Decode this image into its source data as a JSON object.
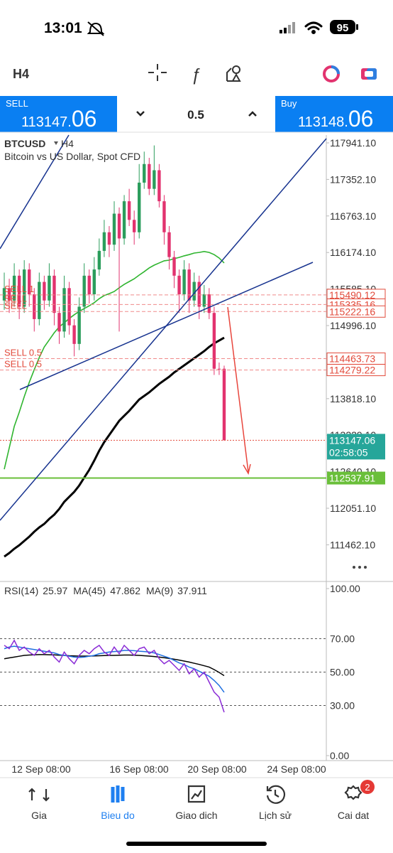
{
  "status_bar": {
    "time": "13:01",
    "battery": "95"
  },
  "toolbar": {
    "timeframe": "H4"
  },
  "trade_panel": {
    "sell": {
      "label": "SELL",
      "price_int": "113147.",
      "price_dec": "06"
    },
    "volume": "0.5",
    "buy": {
      "label": "Buy",
      "price_int": "113148.",
      "price_dec": "06"
    }
  },
  "chart_data": [
    {
      "type": "candlestick",
      "symbol": "BTCUSD",
      "timeframe": "H4",
      "title": "Bitcoin vs US Dollar, Spot CFD",
      "open": [
        115400,
        115600,
        115400,
        115800,
        115300,
        115900,
        115500,
        115100,
        115700,
        115400,
        115800,
        115200,
        114900,
        115600,
        115000,
        114700,
        115300,
        115800,
        115500,
        115900,
        116200,
        116500,
        116300,
        116800,
        116400,
        117000,
        116700,
        116500,
        117300,
        117600,
        117200,
        117500,
        117000,
        116500,
        116100,
        115800,
        115500,
        115900,
        115400,
        115700,
        115300,
        115500,
        115200,
        114300,
        114300
      ],
      "high": [
        115850,
        115750,
        116000,
        115900,
        116050,
        116000,
        115600,
        115850,
        115800,
        116000,
        115900,
        115300,
        115800,
        115700,
        115100,
        115450,
        116000,
        115900,
        116100,
        116400,
        116700,
        116600,
        117000,
        116900,
        117100,
        117200,
        116850,
        117600,
        117800,
        117700,
        117900,
        117600,
        117100,
        116600,
        116200,
        115900,
        116050,
        116000,
        115850,
        115800,
        115650,
        115600,
        115300,
        114400,
        114350
      ],
      "low": [
        115250,
        115200,
        115300,
        115100,
        115200,
        115300,
        114900,
        115000,
        115250,
        115300,
        115000,
        114700,
        114800,
        114850,
        114500,
        114600,
        115200,
        115350,
        115400,
        115800,
        116100,
        116100,
        116200,
        114900,
        116300,
        116600,
        116300,
        116400,
        117200,
        117100,
        117100,
        116900,
        116300,
        115900,
        115600,
        115200,
        115400,
        115200,
        115300,
        115100,
        115200,
        115100,
        114200,
        114200,
        113147.06
      ],
      "close": [
        115600,
        115400,
        115800,
        115300,
        115900,
        115500,
        115100,
        115700,
        115400,
        115800,
        115200,
        114900,
        115600,
        115000,
        114700,
        115300,
        115800,
        115500,
        115900,
        116200,
        116500,
        116300,
        116800,
        116400,
        117000,
        116700,
        116500,
        117300,
        117600,
        117200,
        117500,
        117000,
        116500,
        116100,
        115800,
        115500,
        115900,
        115400,
        115700,
        115300,
        115500,
        115200,
        114300,
        114300,
        113147.06
      ],
      "up_color": "#2b9d5c",
      "down_color": "#e2336f",
      "series": [
        {
          "color": "#2fb52f",
          "values": [
            112680,
            113025,
            113370,
            113600,
            113850,
            114080,
            114285,
            114480,
            114650,
            114765,
            114880,
            114975,
            115040,
            115110,
            115170,
            115225,
            115270,
            115315,
            115365,
            115430,
            115480,
            115510,
            115545,
            115605,
            115660,
            115705,
            115750,
            115810,
            115865,
            115925,
            115970,
            116005,
            116040,
            116050,
            116075,
            116095,
            116120,
            116140,
            116165,
            116175,
            116190,
            116175,
            116140,
            116085,
            116005
          ]
        },
        {
          "color": "#000000",
          "values": [
            111272,
            111329,
            111398,
            111455,
            111524,
            111593,
            111673,
            111742,
            111799,
            111879,
            111948,
            112040,
            112154,
            112235,
            112315,
            112418,
            112544,
            112670,
            112819,
            112979,
            113117,
            113231,
            113346,
            113461,
            113541,
            113621,
            113713,
            113804,
            113862,
            113919,
            113988,
            114056,
            114114,
            114171,
            114240,
            114297,
            114354,
            114412,
            114469,
            114526,
            114584,
            114652,
            114710,
            114755,
            114801
          ]
        }
      ],
      "orders": [
        {
          "label": "SELL 1",
          "price": 115490.12
        },
        {
          "label": "SELL",
          "price": 115335.16
        },
        {
          "label": "SELL",
          "price": 115222.16
        },
        {
          "label": "SELL 0.5",
          "price": 114463.73
        },
        {
          "label": "SELL 0.5",
          "price": 114279.22
        }
      ],
      "current_price": 113147.06,
      "countdown": "02:58:05",
      "level": 112537.91,
      "level_color": "#6abf3a",
      "ylim": [
        110871,
        118067
      ],
      "yticks": [
        {
          "value": 117941.1,
          "label": "117941.10"
        },
        {
          "value": 117352.1,
          "label": "117352.10"
        },
        {
          "value": 116763.1,
          "label": "116763.10"
        },
        {
          "value": 116174.1,
          "label": "116174.10"
        },
        {
          "value": 115585.1,
          "label": "115585.10"
        },
        {
          "value": 114996.1,
          "label": "114996.10"
        },
        {
          "value": 113818.1,
          "label": "113818.10"
        },
        {
          "value": 113229.1,
          "label": "113229.10"
        },
        {
          "value": 112640.1,
          "label": "112640.10"
        },
        {
          "value": 112051.1,
          "label": "112051.10"
        },
        {
          "value": 111462.1,
          "label": "111462.10"
        }
      ],
      "xlabels": [
        "12 Sep 08:00",
        "16 Sep 08:00",
        "20 Sep 08:00",
        "24 Sep 08:00"
      ]
    },
    {
      "type": "line",
      "series": [
        {
          "name": "RSI(14)",
          "color": "#8a2bd6",
          "values": [
            66,
            64,
            69,
            63,
            65,
            62,
            60,
            64,
            61,
            63,
            59,
            56,
            62,
            58,
            55,
            60,
            63,
            61,
            64,
            66,
            62,
            60,
            65,
            61,
            66,
            63,
            60,
            64,
            65,
            61,
            63,
            58,
            55,
            57,
            54,
            51,
            55,
            49,
            52,
            47,
            50,
            44,
            38,
            35,
            25.97
          ]
        },
        {
          "name": "MA(45)",
          "color": "#000000",
          "values": [
            58,
            58.5,
            59,
            59.5,
            60,
            60.2,
            60.4,
            60.5,
            60.5,
            60.4,
            60.3,
            60.1,
            60,
            59.8,
            59.7,
            59.6,
            59.6,
            59.6,
            59.7,
            59.8,
            59.9,
            60,
            60,
            60.1,
            60.2,
            60.2,
            60.1,
            60,
            59.8,
            59.6,
            59.3,
            59,
            58.6,
            58.2,
            57.7,
            57.2,
            56.6,
            56,
            55.3,
            54.6,
            53.8,
            53,
            51.5,
            49.8,
            47.862
          ]
        },
        {
          "name": "MA(9)",
          "color": "#1e6fe0",
          "values": [
            64,
            65,
            65.5,
            65,
            64.5,
            64,
            63.5,
            63,
            62.5,
            62,
            61.5,
            60.5,
            60,
            59.5,
            59,
            58.8,
            59,
            59.5,
            60,
            61,
            61.5,
            62,
            62.3,
            62.5,
            63,
            63,
            62.8,
            62.5,
            62.3,
            62,
            61.5,
            60.5,
            59.5,
            58.5,
            57,
            55.5,
            54.5,
            53,
            52,
            50.5,
            49,
            47.5,
            45,
            42,
            37.911
          ]
        }
      ],
      "ylim": [
        -2.98,
        104.26
      ],
      "yticks": [
        {
          "value": 100,
          "label": "100.00"
        },
        {
          "value": 70,
          "label": "70.00"
        },
        {
          "value": 50,
          "label": "50.00"
        },
        {
          "value": 30,
          "label": "30.00"
        },
        {
          "value": 0,
          "label": "0.00"
        }
      ]
    }
  ],
  "nav": {
    "items": [
      "Gia",
      "Bieu do",
      "Giao dich",
      "Lịch sử",
      "Cai dat"
    ],
    "active": 1,
    "badge": "2"
  }
}
